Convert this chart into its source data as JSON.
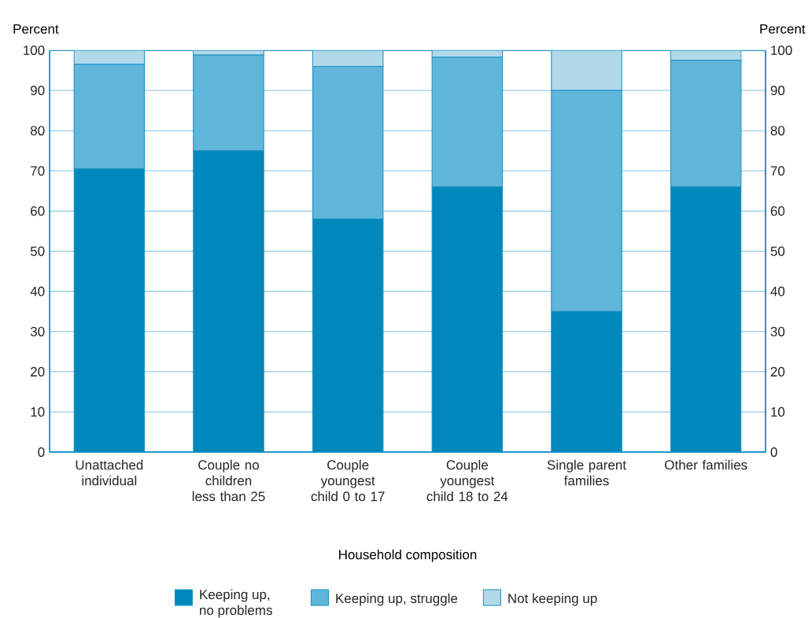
{
  "chart_data": {
    "type": "bar",
    "stacked": true,
    "xlabel": "Household composition",
    "ylabel": "Percent",
    "y2label": "Percent",
    "categories": [
      "Unattached individual",
      "Couple no children less than 25",
      "Couple youngest child 0 to 17",
      "Couple youngest child 18 to 24",
      "Single parent families",
      "Other families"
    ],
    "series": [
      {
        "name": "Keeping up, no problems",
        "color": "#0088bc",
        "values": [
          70.5,
          75,
          58,
          66,
          35,
          66
        ]
      },
      {
        "name": "Keeping up, struggle",
        "color": "#5fb6da",
        "values": [
          26,
          23.8,
          38,
          32.3,
          55,
          31.5
        ]
      },
      {
        "name": "Not keeping up",
        "color": "#b1d9ea",
        "values": [
          3.5,
          1.2,
          4,
          1.7,
          10,
          2.5
        ]
      }
    ],
    "ylim": [
      0,
      100
    ],
    "yticks": [
      0,
      10,
      20,
      30,
      40,
      50,
      60,
      70,
      80,
      90,
      100
    ],
    "y2lim": [
      0,
      100
    ],
    "y2ticks": [
      0,
      10,
      20,
      30,
      40,
      50,
      60,
      70,
      80,
      90,
      100
    ],
    "grid": "y",
    "legend": "bottom"
  }
}
